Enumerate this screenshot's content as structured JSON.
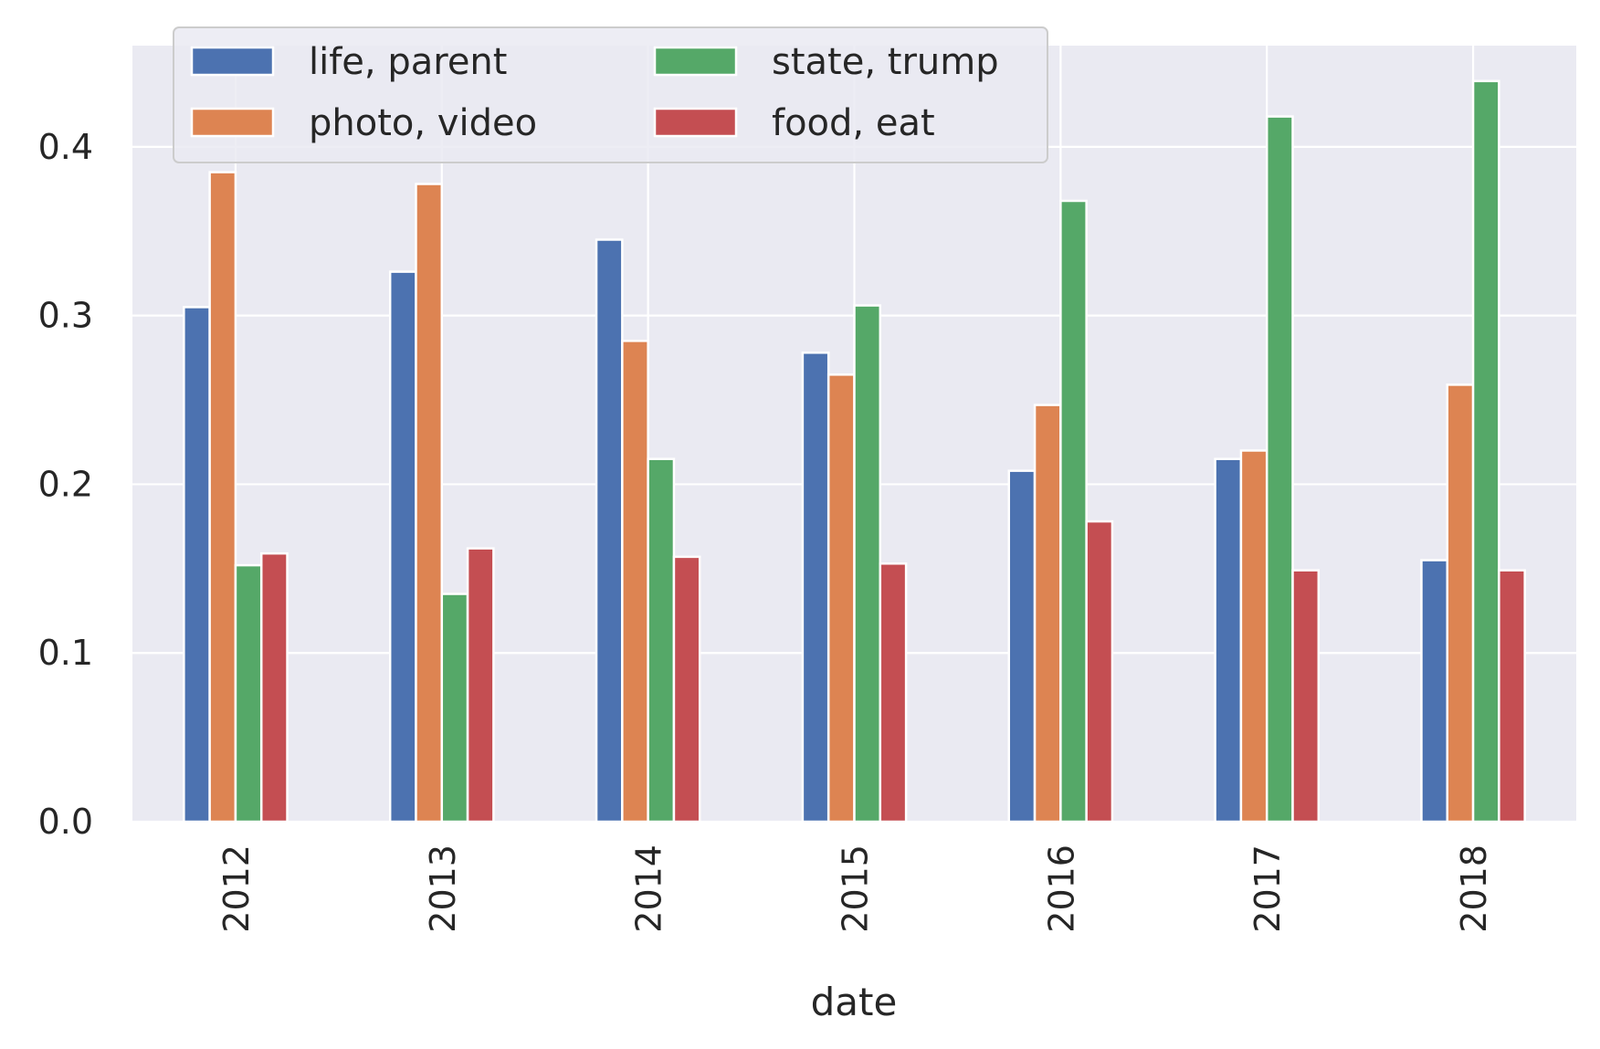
{
  "chart_data": {
    "type": "bar",
    "xlabel": "date",
    "ylabel": "",
    "categories": [
      "2012",
      "2013",
      "2014",
      "2015",
      "2016",
      "2017",
      "2018"
    ],
    "series": [
      {
        "name": "life, parent",
        "color": "#4c72b0",
        "values": [
          0.305,
          0.326,
          0.345,
          0.278,
          0.208,
          0.215,
          0.155
        ]
      },
      {
        "name": "photo, video",
        "color": "#dd8452",
        "values": [
          0.385,
          0.378,
          0.285,
          0.265,
          0.247,
          0.22,
          0.259
        ]
      },
      {
        "name": "state, trump",
        "color": "#55a868",
        "values": [
          0.152,
          0.135,
          0.215,
          0.306,
          0.368,
          0.418,
          0.439
        ]
      },
      {
        "name": "food, eat",
        "color": "#c44e52",
        "values": [
          0.159,
          0.162,
          0.157,
          0.153,
          0.178,
          0.149,
          0.149
        ]
      }
    ],
    "ylim": [
      0,
      0.46
    ],
    "yticks": [
      "0.0",
      "0.1",
      "0.2",
      "0.3",
      "0.4"
    ],
    "grid": true,
    "background": "#eaeaf2",
    "legend_position": "upper-left",
    "legend_columns": 2
  }
}
